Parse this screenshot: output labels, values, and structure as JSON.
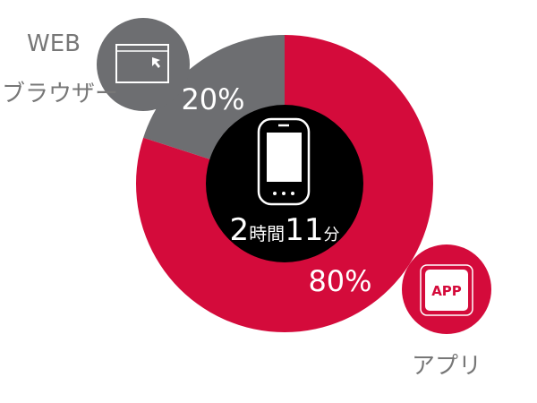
{
  "chart_data": {
    "type": "pie",
    "variant": "donut",
    "categories": [
      "WEB ブラウザー",
      "アプリ"
    ],
    "values": [
      20,
      80
    ],
    "unit": "%",
    "data_labels": [
      "20%",
      "80%"
    ],
    "center_label": {
      "number1": "2",
      "unit1": "時間",
      "number2": "11",
      "unit2": "分"
    },
    "legend": [
      {
        "line1": "WEB",
        "line2": "ブラウザー",
        "icon": "browser-window-cursor-icon"
      },
      {
        "line1": "アプリ",
        "icon": "app-icon",
        "icon_text": "APP"
      }
    ],
    "center_icon": "smartphone-icon"
  },
  "colors": {
    "web": "#6d6e71",
    "app": "#d40b3b",
    "center": "#000000",
    "label": "#777777"
  }
}
